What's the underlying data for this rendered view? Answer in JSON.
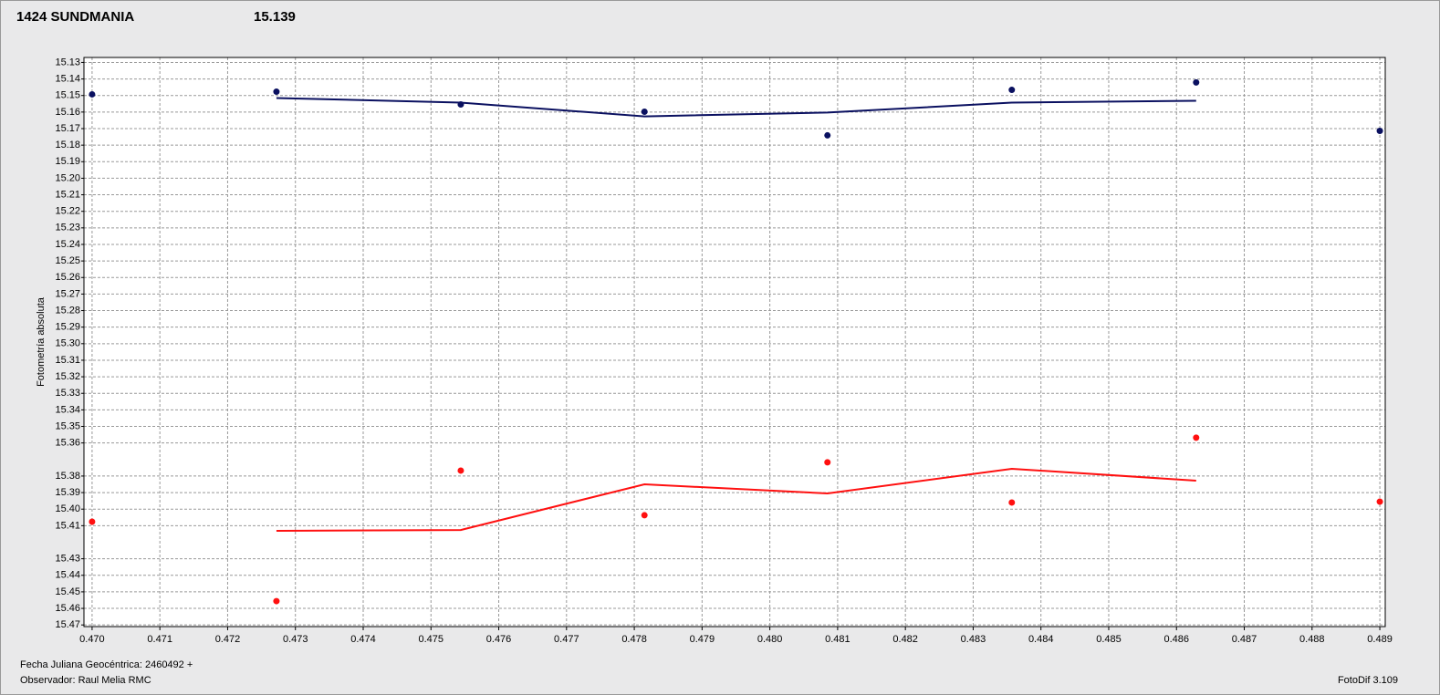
{
  "chart_data": {
    "type": "scatter",
    "title": "1424 SUNDMANIA",
    "title_color": "#ff2020",
    "subtitle": "15.139",
    "subtitle_color": "#1a1a7a",
    "y_label": "Fotometría absoluta",
    "x_label": "Fecha Juliana Geocéntrica: 2460492 +",
    "observer": "Observador: Raul Melia RMC",
    "software": "FotoDif 3.109",
    "y_inverted": true,
    "grid": true,
    "xlim": [
      0.46988,
      0.48908
    ],
    "ylim": [
      15.127,
      15.471
    ],
    "xticks": [
      {
        "value": 0.47,
        "label": "0.470"
      },
      0.471,
      0.472,
      0.473,
      0.474,
      0.475,
      0.476,
      0.477,
      0.478,
      0.479,
      {
        "value": 0.48,
        "label": "0.480"
      },
      0.481,
      0.482,
      0.483,
      0.484,
      0.485,
      0.486,
      0.487,
      0.488,
      0.489
    ],
    "yticks": [
      15.13,
      15.14,
      15.15,
      15.16,
      15.17,
      15.18,
      15.19,
      {
        "value": 15.2,
        "label": "15.20"
      },
      15.21,
      15.22,
      15.23,
      15.24,
      15.25,
      15.26,
      15.27,
      15.28,
      15.29,
      {
        "value": 15.3,
        "label": "15.30"
      },
      15.31,
      15.32,
      15.33,
      15.34,
      15.35,
      15.36,
      15.38,
      15.39,
      {
        "value": 15.4,
        "label": "15.40"
      },
      15.41,
      15.43,
      15.44,
      15.45,
      15.46,
      15.47
    ],
    "x": [
      0.47,
      0.47272,
      0.47544,
      0.47815,
      0.48085,
      0.48357,
      0.48629,
      0.489
    ],
    "series": [
      {
        "style": "markers",
        "color": "#0a1060",
        "values": [
          15.1493,
          15.1477,
          15.1554,
          15.1598,
          15.1741,
          15.1466,
          15.1421,
          15.1714
        ]
      },
      {
        "style": "line",
        "color": "#0a1060",
        "values": [
          null,
          15.1515,
          15.1543,
          15.1626,
          15.1603,
          15.1543,
          15.1532,
          null
        ]
      },
      {
        "style": "markers",
        "color": "#ff1010",
        "values": [
          15.4076,
          15.4556,
          15.3767,
          15.4037,
          15.3717,
          15.396,
          15.3568,
          15.3955
        ]
      },
      {
        "style": "line",
        "color": "#ff1010",
        "values": [
          null,
          15.4131,
          15.4126,
          15.385,
          15.3905,
          15.3756,
          15.3828,
          null
        ]
      }
    ]
  }
}
